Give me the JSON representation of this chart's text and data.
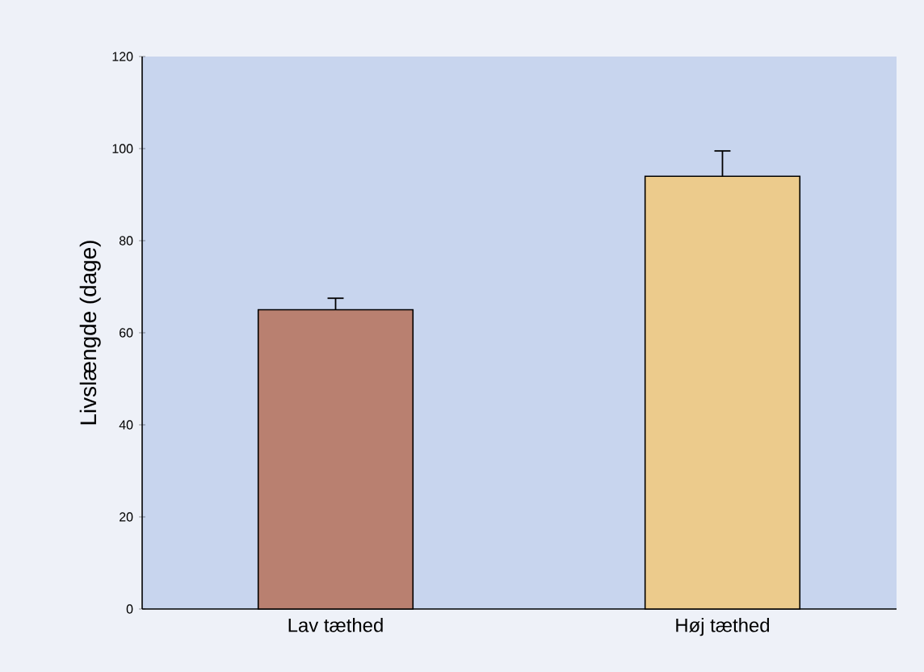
{
  "chart_data": {
    "type": "bar",
    "ylabel": "Livslængde (dage)",
    "categories": [
      "Lav tæthed",
      "Høj tæthed"
    ],
    "values": [
      65,
      94
    ],
    "errors": [
      2.5,
      5.5
    ],
    "colors": [
      "#b98070",
      "#eccb8c"
    ],
    "ylim": [
      0,
      120
    ],
    "yticks": [
      0,
      20,
      40,
      60,
      80,
      100,
      120
    ]
  }
}
